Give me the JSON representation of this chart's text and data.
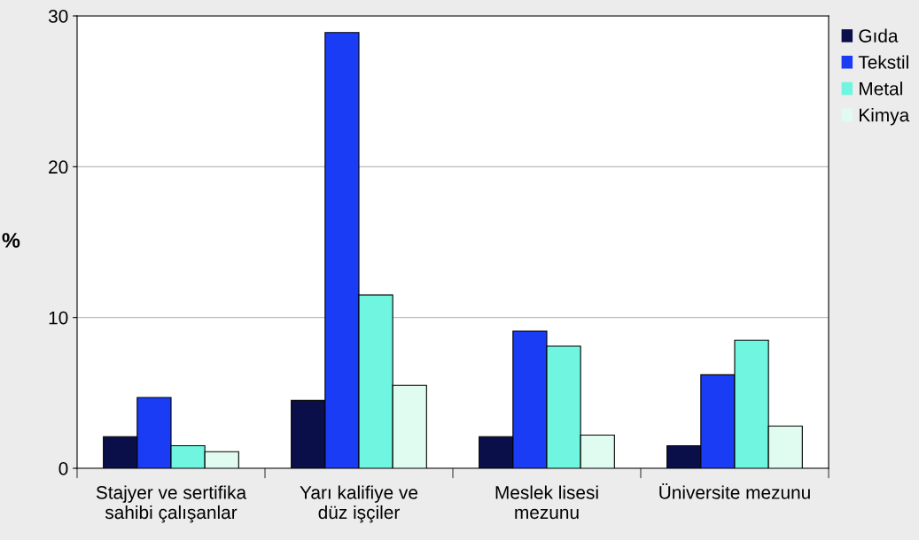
{
  "chart_data": {
    "type": "bar",
    "ylabel": "%",
    "categories": [
      "Stajyer ve sertifika\nsahibi çalışanlar",
      "Yarı kalifiye ve\ndüz işçiler",
      "Meslek lisesi\nmezunu",
      "Üniversite mezunu"
    ],
    "series": [
      {
        "name": "Gıda",
        "color": "#0a0f4a",
        "values": [
          2.1,
          4.5,
          2.1,
          1.5
        ]
      },
      {
        "name": "Tekstil",
        "color": "#1a3cf5",
        "values": [
          4.7,
          28.9,
          9.1,
          6.2
        ]
      },
      {
        "name": "Metal",
        "color": "#70f5e0",
        "values": [
          1.5,
          11.5,
          8.1,
          8.5
        ]
      },
      {
        "name": "Kimya",
        "color": "#e0fbf0",
        "values": [
          1.1,
          5.5,
          2.2,
          2.8
        ]
      }
    ],
    "ylim": [
      0,
      30
    ],
    "yticks": [
      0,
      10,
      20,
      30
    ],
    "grid": "y",
    "legend": "top right"
  }
}
